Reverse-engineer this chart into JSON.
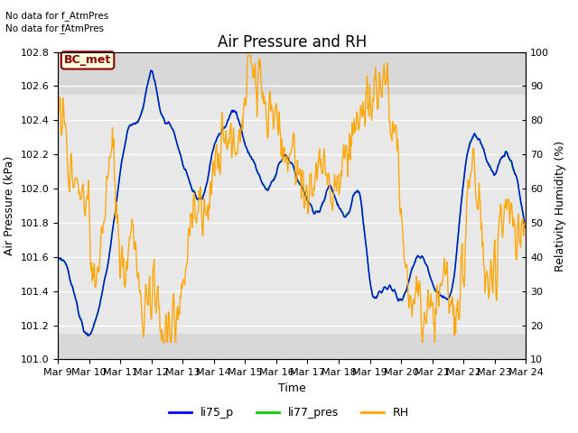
{
  "title": "Air Pressure and RH",
  "ylabel_left": "Air Pressure (kPa)",
  "ylabel_right": "Relativity Humidity (%)",
  "xlabel": "Time",
  "ylim_left": [
    101.0,
    102.8
  ],
  "ylim_right": [
    10,
    100
  ],
  "yticks_left": [
    101.0,
    101.2,
    101.4,
    101.6,
    101.8,
    102.0,
    102.2,
    102.4,
    102.6,
    102.8
  ],
  "yticks_right": [
    10,
    20,
    30,
    40,
    50,
    60,
    70,
    80,
    90,
    100
  ],
  "shade_ylim": [
    101.15,
    102.55
  ],
  "bc_met_label": "BC_met",
  "no_data_text1": "No data for f_AtmPres",
  "no_data_text2": "No data for f̲AtmPres",
  "legend_labels": [
    "li75_p",
    "li77_pres",
    "RH"
  ],
  "line_colors": {
    "li75_p": "blue",
    "li77_pres": "#00cc00",
    "RH": "orange"
  },
  "plot_bg_color": "#d8d8d8",
  "shade_color": "#e8e8e8",
  "title_fontsize": 12,
  "axis_fontsize": 9,
  "tick_fontsize": 8,
  "xtick_labels": [
    "Mar 9",
    "Mar 10",
    "Mar 11",
    "Mar 12",
    "Mar 13",
    "Mar 14",
    "Mar 15",
    "Mar 16",
    "Mar 17",
    "Mar 18",
    "Mar 19",
    "Mar 20",
    "Mar 21",
    "Mar 22",
    "Mar 23",
    "Mar 24"
  ]
}
